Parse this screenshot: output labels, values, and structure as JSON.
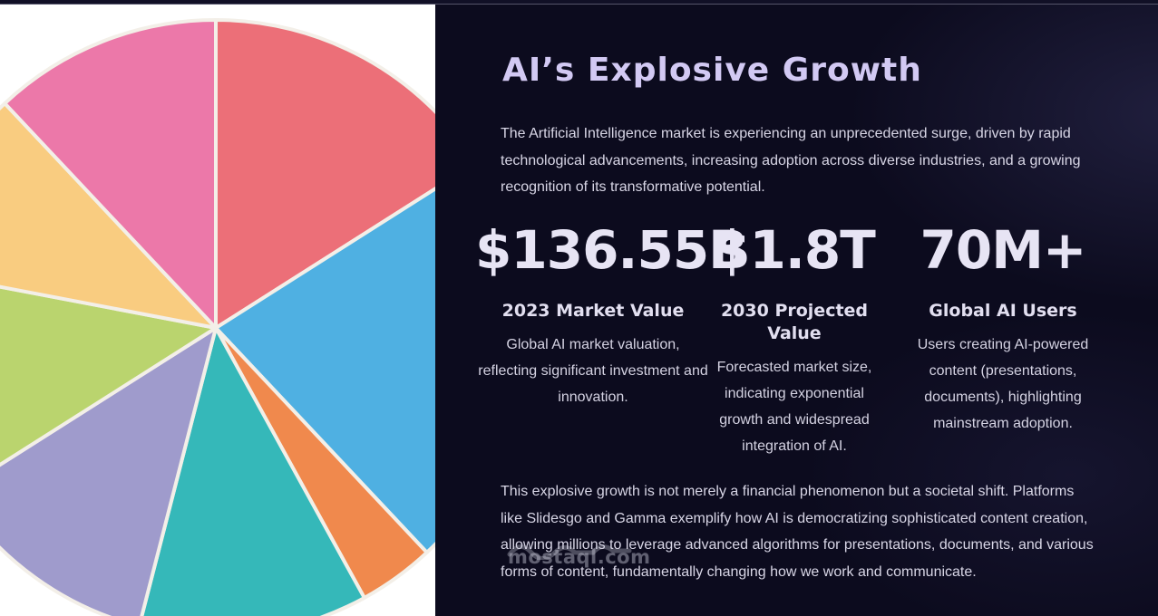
{
  "title": "AI’s Explosive Growth",
  "intro": "The Artificial Intelligence market is experiencing an unprecedented surge, driven by rapid technological advancements, increasing adoption across diverse industries, and a growing recognition of its transformative potential.",
  "stats": [
    {
      "value": "$136.55B",
      "label": "2023 Market Value",
      "description": "Global AI market valuation, reflecting significant investment and innovation."
    },
    {
      "value": "$1.8T",
      "label": "2030 Projected Value",
      "description": "Forecasted market size, indicating exponential growth and widespread integration of AI."
    },
    {
      "value": "70M+",
      "label": "Global AI Users",
      "description": "Users creating AI-powered content (presentations, documents), highlighting mainstream adoption."
    }
  ],
  "outro": "This explosive growth is not merely a financial phenomenon but a societal shift. Platforms like Slidesgo and Gamma exemplify how AI is democratizing sophisticated content creation, allowing millions to leverage advanced algorithms for presentations, documents, and various forms of content, fundamentally changing how we work and communicate.",
  "watermark": "mostaql.com",
  "colors": {
    "background": "#0c0b1e",
    "title": "#d2c9f3",
    "slices": [
      "#ec6f78",
      "#4fb0e2",
      "#f0894d",
      "#35b8b9",
      "#9f9bcc",
      "#bad46e",
      "#f9cc80",
      "#ec78a9"
    ]
  },
  "chart_data": {
    "type": "pie",
    "values": [
      16,
      22,
      4,
      12,
      12,
      12,
      10,
      12
    ],
    "colors": [
      "#ec6f78",
      "#4fb0e2",
      "#f0894d",
      "#35b8b9",
      "#9f9bcc",
      "#bad46e",
      "#f9cc80",
      "#ec78a9"
    ]
  }
}
